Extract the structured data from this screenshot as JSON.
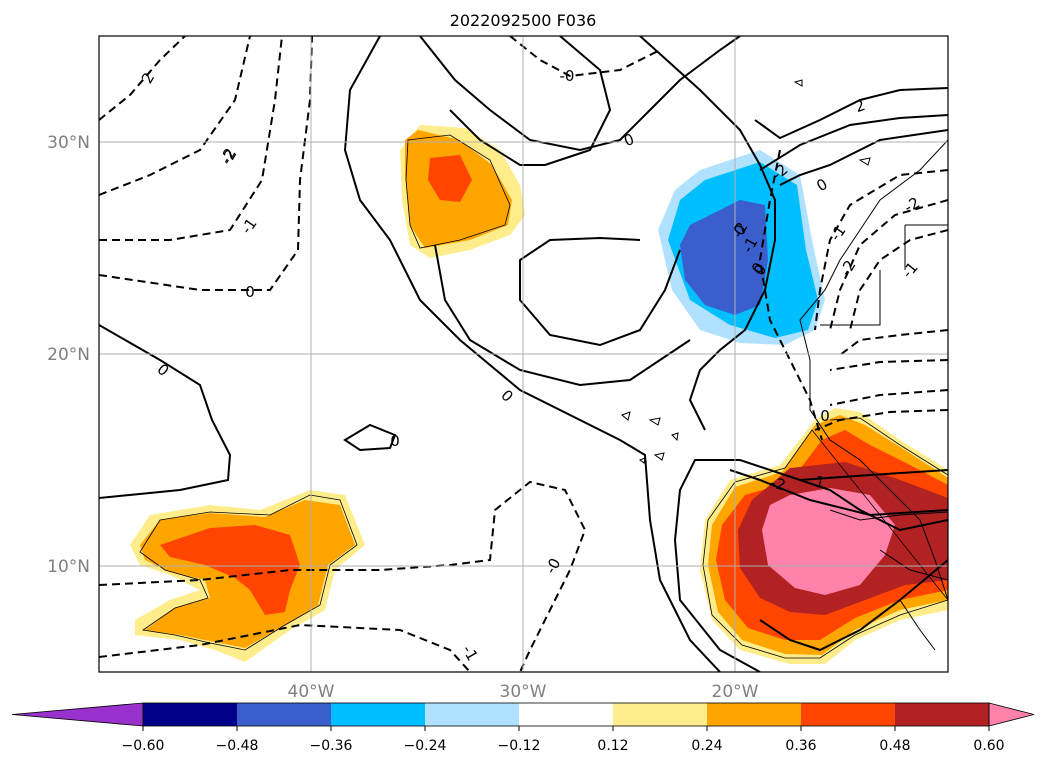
{
  "title": "2022092500 F036",
  "lat_labels": [
    "30°N",
    "20°N",
    "10°N"
  ],
  "lon_labels": [
    "40°W",
    "30°W",
    "20°W"
  ],
  "colorbar": {
    "colors": [
      "#9932cc",
      "#00008b",
      "#3a5fcd",
      "#00bfff",
      "#b0e2ff",
      "#ffffff",
      "#ffec8b",
      "#ffa500",
      "#ff4500",
      "#b22222",
      "#ff82ab"
    ],
    "ticks": [
      "−0.60",
      "−0.48",
      "−0.36",
      "−0.24",
      "−0.12",
      "0.12",
      "0.24",
      "0.36",
      "0.48",
      "0.60"
    ],
    "extend": "both"
  },
  "contour_labels": [
    "2",
    "-2",
    "-2",
    "-1",
    "0",
    "0",
    "0",
    "0",
    "0",
    "0",
    "0",
    "0",
    "-0",
    "-0",
    "-1",
    "2",
    "-2",
    "-2",
    "-2",
    "-2",
    "-1",
    "0",
    "0",
    "1",
    "-1",
    "-1",
    "-2"
  ],
  "map": {
    "projection": "equirectangular",
    "grid": "on",
    "lon_range": [
      "49°W",
      "9°W"
    ],
    "lat_range": [
      "5°N",
      "35°N"
    ],
    "shaded_field_levels": [
      -0.6,
      -0.48,
      -0.36,
      -0.24,
      -0.12,
      0.12,
      0.24,
      0.36,
      0.48,
      0.6
    ]
  }
}
